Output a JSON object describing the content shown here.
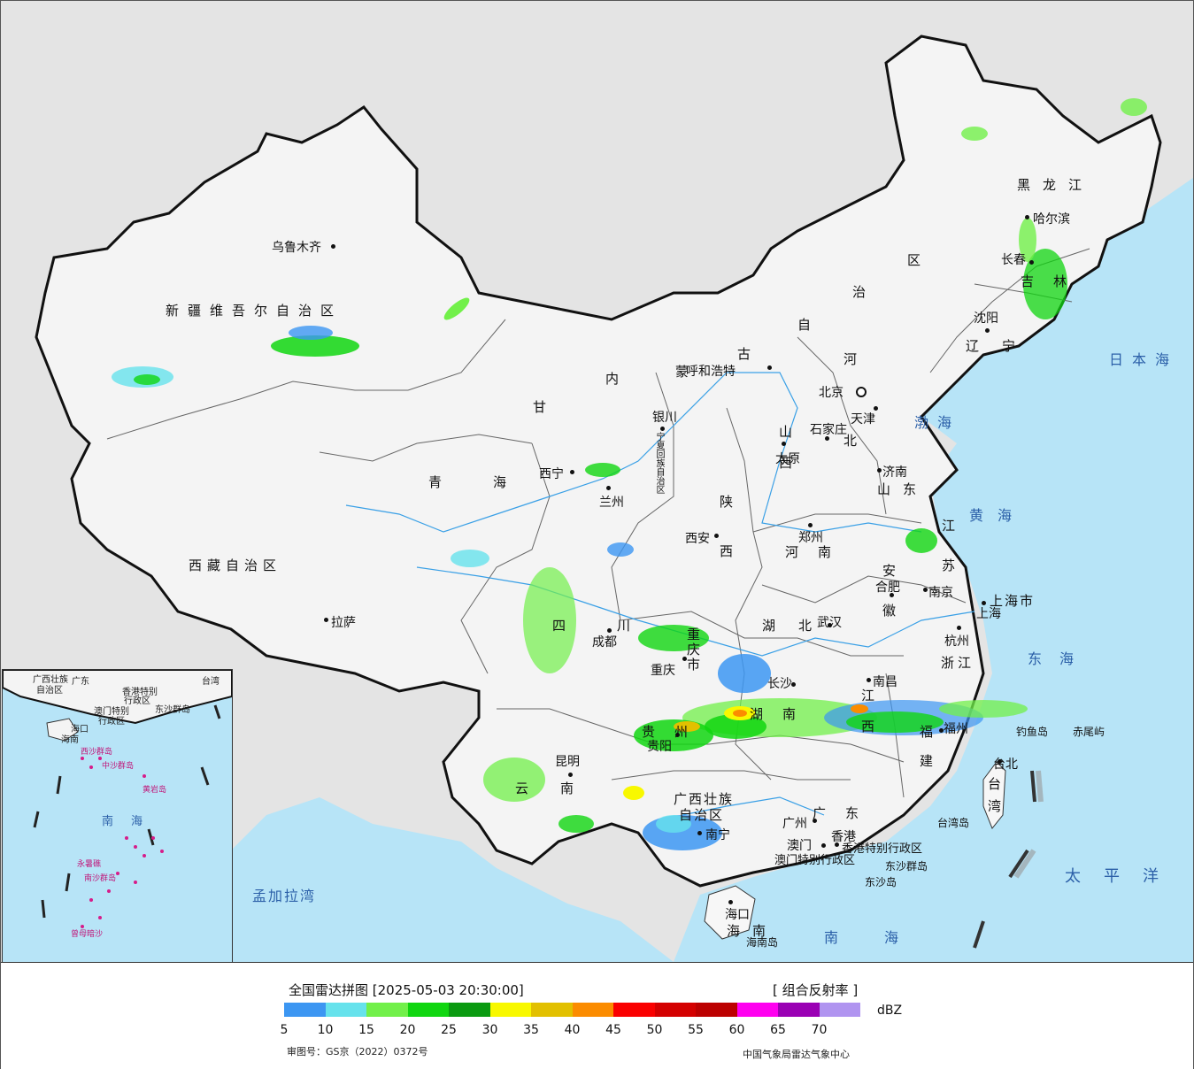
{
  "header": {
    "title": "全国雷达拼图 [2025-05-03 20:30:00]",
    "product": "[ 组合反射率 ]",
    "unit": "dBZ"
  },
  "legend": {
    "colors": [
      "#3c96f2",
      "#66e2ec",
      "#72f04a",
      "#10d610",
      "#0a9a10",
      "#f8f800",
      "#e2c000",
      "#fb8c00",
      "#fa0000",
      "#d40000",
      "#bc0000",
      "#ff00f0",
      "#9a00b4",
      "#b094f0"
    ],
    "ticks": [
      "5",
      "10",
      "15",
      "20",
      "25",
      "30",
      "35",
      "40",
      "45",
      "50",
      "55",
      "60",
      "65",
      "70"
    ]
  },
  "footer": {
    "approval": "审图号：GS京（2022）0372号",
    "credit": "中国气象局雷达气象中心"
  },
  "map": {
    "cities": [
      {
        "name": "乌鲁木齐"
      },
      {
        "name": "拉萨"
      },
      {
        "name": "西宁"
      },
      {
        "name": "兰州"
      },
      {
        "name": "银川"
      },
      {
        "name": "呼和浩特"
      },
      {
        "name": "北京"
      },
      {
        "name": "天津"
      },
      {
        "name": "石家庄"
      },
      {
        "name": "太原"
      },
      {
        "name": "济南"
      },
      {
        "name": "郑州"
      },
      {
        "name": "西安"
      },
      {
        "name": "成都"
      },
      {
        "name": "重庆"
      },
      {
        "name": "武汉"
      },
      {
        "name": "合肥"
      },
      {
        "name": "南京"
      },
      {
        "name": "上海"
      },
      {
        "name": "杭州"
      },
      {
        "name": "南昌"
      },
      {
        "name": "长沙"
      },
      {
        "name": "贵阳"
      },
      {
        "name": "昆明"
      },
      {
        "name": "南宁"
      },
      {
        "name": "广州"
      },
      {
        "name": "澳门"
      },
      {
        "name": "香港"
      },
      {
        "name": "福州"
      },
      {
        "name": "台北"
      },
      {
        "name": "海口"
      },
      {
        "name": "沈阳"
      },
      {
        "name": "长春"
      },
      {
        "name": "哈尔滨"
      }
    ],
    "provinces": [
      "新疆维吾尔自治区",
      "西藏自治区",
      "青海",
      "甘",
      "内",
      "蒙",
      "古",
      "区",
      "治",
      "自",
      "黑龙江",
      "吉林",
      "辽宁",
      "河",
      "北",
      "山西",
      "山东",
      "陕",
      "西",
      "河南",
      "江苏",
      "安徽",
      "湖北",
      "湖南",
      "四川",
      "贵州",
      "云南",
      "广西壮族",
      "自治区",
      "广东",
      "江西",
      "福建",
      "浙江",
      "上海市",
      "台湾",
      "海南",
      "重庆市",
      "宁夏回族自治区",
      "香港特别行政区",
      "澳门特别行政区"
    ],
    "seas": [
      "日本海",
      "渤海",
      "黄海",
      "东海",
      "太平洋",
      "南海",
      "孟加拉湾"
    ],
    "islands": [
      "钓鱼岛",
      "赤尾屿",
      "台湾岛",
      "东沙群岛",
      "东沙岛",
      "海南岛"
    ],
    "inset": {
      "labels": [
        "广西壮族",
        "自治区",
        "广东",
        "台湾",
        "香港特别",
        "行政区",
        "澳门特别",
        "行政区",
        "东沙群岛",
        "海口",
        "海南",
        "西沙群岛",
        "中沙群岛",
        "黄岩岛",
        "南海",
        "南沙群岛",
        "永暑礁",
        "曾母暗沙"
      ]
    }
  }
}
